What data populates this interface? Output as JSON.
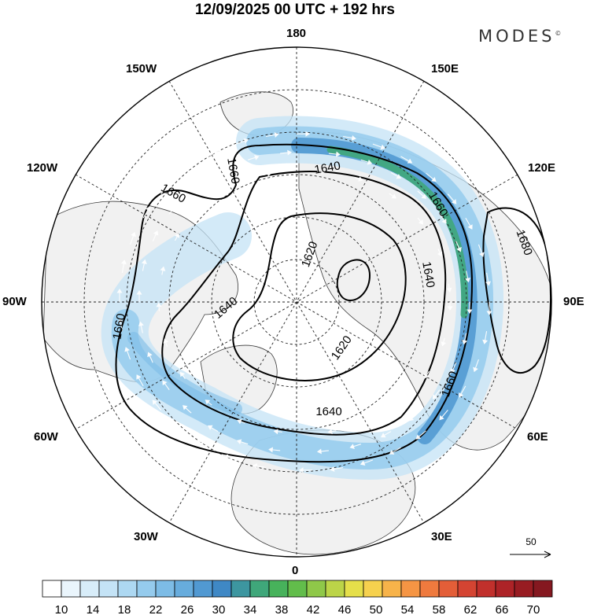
{
  "title": "12/09/2025  00 UTC  + 192 hrs",
  "brand": {
    "name": "MODES",
    "mark": "©"
  },
  "longitude_labels": {
    "top": "180",
    "bottom": "0",
    "left": "90W",
    "right": "90E",
    "upper_left_1": "150W",
    "upper_left_2": "120W",
    "upper_right_1": "150E",
    "upper_right_2": "120E",
    "lower_left_1": "60W",
    "lower_left_2": "30W",
    "lower_right_1": "60E",
    "lower_right_2": "30E"
  },
  "contours": {
    "labels": [
      "1660",
      "1660",
      "1640",
      "1680",
      "1620",
      "1640",
      "1660",
      "1640",
      "1620",
      "1660",
      "1640",
      "1660"
    ]
  },
  "vector_reference": {
    "value": "50"
  },
  "colorbar": {
    "tick_labels": [
      "10",
      "14",
      "18",
      "22",
      "26",
      "30",
      "34",
      "38",
      "42",
      "46",
      "50",
      "54",
      "58",
      "62",
      "66",
      "70"
    ],
    "colors": [
      "#ffffff",
      "#eaf5fc",
      "#d8edf9",
      "#c4e3f6",
      "#add8f2",
      "#95cbed",
      "#7dbce6",
      "#67acdd",
      "#5199d2",
      "#3f88c5",
      "#3d96a0",
      "#3fa77a",
      "#47b25b",
      "#62bd4b",
      "#8fc849",
      "#bcd448",
      "#e5df4a",
      "#f6d14e",
      "#f7b34a",
      "#f59544",
      "#ef7a3e",
      "#e35e38",
      "#d44432",
      "#c1302c",
      "#ad2327",
      "#981c22",
      "#851820"
    ]
  }
}
